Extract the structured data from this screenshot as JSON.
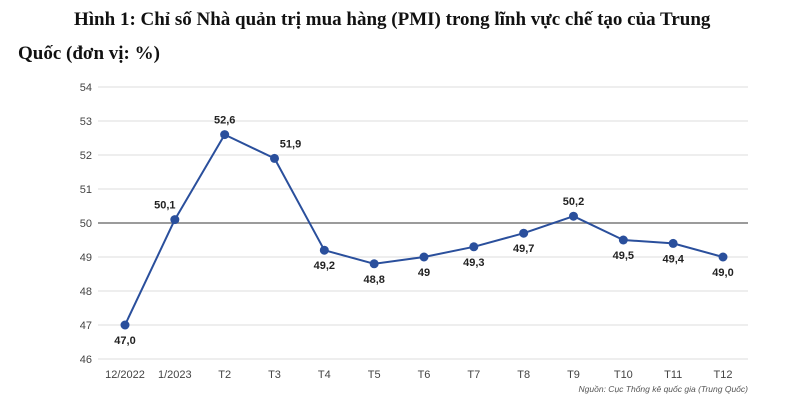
{
  "title_line1": "Hình 1: Chỉ số Nhà quản trị mua hàng (PMI) trong lĩnh vực chế tạo của Trung",
  "title_line2": "Quốc (đơn vị: %)",
  "source": "Nguồn: Cục Thống kê quốc gia (Trung Quốc)",
  "chart_data": {
    "type": "line",
    "categories": [
      "12/2022",
      "1/2023",
      "T2",
      "T3",
      "T4",
      "T5",
      "T6",
      "T7",
      "T8",
      "T9",
      "T10",
      "T11",
      "T12"
    ],
    "series": [
      {
        "values": [
          47.0,
          50.1,
          52.6,
          51.9,
          49.2,
          48.8,
          49.0,
          49.3,
          49.7,
          50.2,
          49.5,
          49.4,
          49.0
        ],
        "labels": [
          "47,0",
          "50,1",
          "52,6",
          "51,9",
          "49,2",
          "48,8",
          "49",
          "49,3",
          "49,7",
          "50,2",
          "49,5",
          "49,4",
          "49,0"
        ],
        "color": "#2a4f9c"
      }
    ],
    "ylim": [
      46,
      54
    ],
    "yticks": [
      46,
      47,
      48,
      49,
      50,
      51,
      52,
      53,
      54
    ],
    "reference_line": 50,
    "grid": true,
    "line_color": "#2a4f9c",
    "grid_color": "#dddddd",
    "reference_color": "#7a7a7a"
  }
}
